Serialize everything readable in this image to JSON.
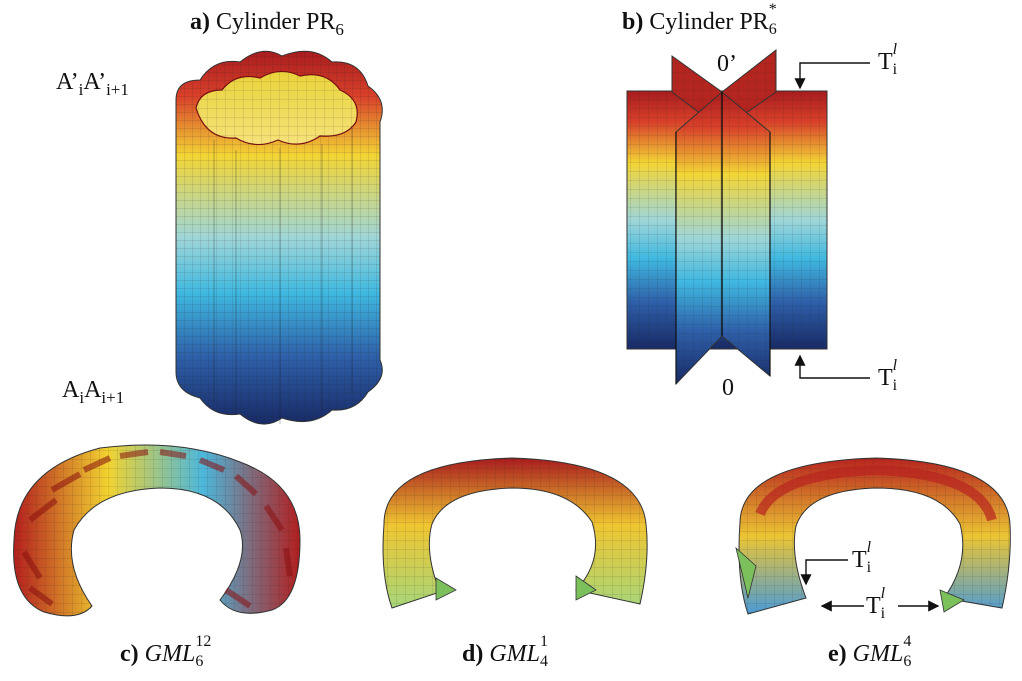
{
  "panels": {
    "a": {
      "letter": "a)",
      "title": "Cylinder PR",
      "sub": "6"
    },
    "b": {
      "letter": "b)",
      "title": "Cylinder PR",
      "sup": "*",
      "sub": "6"
    },
    "c": {
      "letter": "c)",
      "name": "GML",
      "sup": "12",
      "sub": "6"
    },
    "d": {
      "letter": "d)",
      "name": "GML",
      "sup": "1",
      "sub": "4"
    },
    "e": {
      "letter": "e)",
      "name": "GML",
      "sup": "4",
      "sub": "6"
    }
  },
  "annotations": {
    "top_edge": {
      "base": "A’",
      "i": "i",
      "base2": "A’",
      "ip1": "i+1"
    },
    "bottom_edge": {
      "base": "A",
      "i": "i",
      "base2": "A",
      "ip1": "i+1"
    },
    "zero_prime": "0’",
    "zero": "0",
    "T": "T",
    "T_sub": "i",
    "T_sup": "l"
  },
  "colors": {
    "red": "#b0201e",
    "yellow": "#f2d431",
    "cyan": "#4fc0dc",
    "navy": "#1c2f6e",
    "green": "#7cc05c"
  }
}
